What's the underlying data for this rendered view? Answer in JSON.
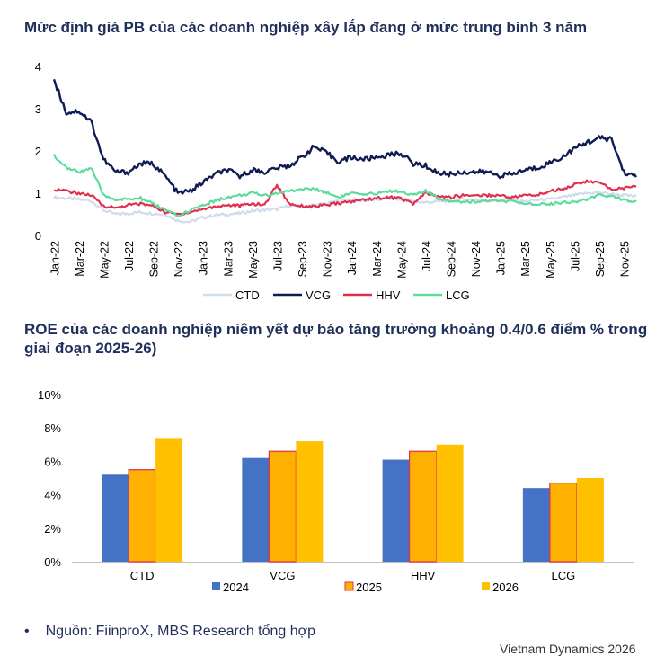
{
  "chart1_title": "Mức định giá PB của các doanh nghiệp xây lắp đang ở mức trung bình 3 năm",
  "chart2_title": "ROE của các doanh nghiệp niêm yết dự báo tăng trưởng khoảng 0.4/0.6 điểm % trong giai đoạn 2025-26)",
  "source": "Nguồn: FiinproX, MBS Research tổng hợp",
  "footer": "Vietnam Dynamics 2026",
  "chart_data": [
    {
      "type": "line",
      "title": "Mức định giá PB của các doanh nghiệp xây lắp đang ở mức trung bình 3 năm",
      "x_range": [
        "Jan-22",
        "Dec-25"
      ],
      "tick_labels": [
        "Jan-22",
        "Mar-22",
        "May-22",
        "Jul-22",
        "Sep-22",
        "Nov-22",
        "Jan-23",
        "Mar-23",
        "May-23",
        "Jul-23",
        "Sep-23",
        "Nov-23",
        "Jan-24",
        "Mar-24",
        "May-24",
        "Jul-24",
        "Sep-24",
        "Nov-24",
        "Jan-25",
        "Mar-25",
        "May-25",
        "Jul-25",
        "Sep-25",
        "Nov-25"
      ],
      "y_ticks": [
        "0",
        "1",
        "2",
        "3",
        "4"
      ],
      "ylim": [
        0,
        4
      ],
      "legend_position": "bottom",
      "months": [
        0,
        1,
        2,
        3,
        4,
        5,
        6,
        7,
        8,
        9,
        10,
        11,
        12,
        13,
        14,
        15,
        16,
        17,
        18,
        19,
        20,
        21,
        22,
        23,
        24,
        25,
        26,
        27,
        28,
        29,
        30,
        31,
        32,
        33,
        34,
        35,
        36,
        37,
        38,
        39,
        40,
        41,
        42,
        43,
        44,
        45,
        46,
        47
      ],
      "series": [
        {
          "name": "CTD",
          "color": "#d0dcec",
          "values": [
            0.9,
            0.88,
            0.85,
            0.82,
            0.6,
            0.5,
            0.52,
            0.55,
            0.52,
            0.5,
            0.35,
            0.32,
            0.42,
            0.48,
            0.5,
            0.52,
            0.58,
            0.6,
            0.62,
            0.7,
            0.68,
            0.72,
            0.75,
            0.82,
            0.85,
            0.82,
            0.84,
            0.88,
            0.84,
            0.8,
            0.78,
            0.8,
            0.82,
            0.85,
            0.85,
            0.82,
            0.84,
            0.85,
            0.8,
            0.84,
            0.85,
            0.9,
            0.95,
            1.0,
            1.02,
            0.98,
            0.95,
            0.92
          ]
        },
        {
          "name": "VCG",
          "color": "#0f1c54",
          "values": [
            3.7,
            2.9,
            2.95,
            2.7,
            1.8,
            1.5,
            1.5,
            1.7,
            1.7,
            1.4,
            1.0,
            1.05,
            1.25,
            1.45,
            1.55,
            1.4,
            1.55,
            1.5,
            1.6,
            1.65,
            1.85,
            2.1,
            1.95,
            1.75,
            1.85,
            1.8,
            1.85,
            1.9,
            1.95,
            1.7,
            1.65,
            1.48,
            1.45,
            1.5,
            1.5,
            1.5,
            1.42,
            1.45,
            1.55,
            1.6,
            1.72,
            1.85,
            2.05,
            2.2,
            2.3,
            2.28,
            1.5,
            1.38
          ]
        },
        {
          "name": "HHV",
          "color": "#e0304e",
          "values": [
            1.1,
            1.05,
            1.0,
            0.95,
            0.7,
            0.65,
            0.72,
            0.75,
            0.7,
            0.55,
            0.5,
            0.55,
            0.62,
            0.68,
            0.72,
            0.7,
            0.75,
            0.72,
            1.2,
            0.75,
            0.7,
            0.68,
            0.72,
            0.76,
            0.8,
            0.85,
            0.88,
            0.9,
            0.88,
            0.75,
            1.0,
            0.92,
            0.9,
            0.95,
            0.95,
            0.95,
            0.95,
            0.9,
            0.95,
            0.95,
            1.05,
            1.1,
            1.2,
            1.28,
            1.25,
            1.1,
            1.12,
            1.15
          ]
        },
        {
          "name": "LCG",
          "color": "#5ddb9b",
          "values": [
            1.9,
            1.6,
            1.5,
            1.6,
            0.95,
            0.85,
            0.85,
            0.88,
            0.75,
            0.6,
            0.45,
            0.6,
            0.7,
            0.82,
            0.9,
            0.95,
            1.0,
            0.95,
            1.0,
            1.05,
            1.1,
            1.1,
            1.02,
            0.9,
            1.0,
            0.95,
            1.0,
            1.05,
            1.05,
            0.95,
            1.05,
            0.88,
            0.82,
            0.8,
            0.8,
            0.82,
            0.8,
            0.82,
            0.72,
            0.75,
            0.75,
            0.78,
            0.8,
            0.85,
            0.95,
            0.92,
            0.85,
            0.8
          ]
        }
      ]
    },
    {
      "type": "bar",
      "title": "ROE của các doanh nghiệp niêm yết dự báo tăng trưởng khoảng 0.4/0.6 điểm % trong giai đoạn 2025-26)",
      "categories": [
        "CTD",
        "VCG",
        "HHV",
        "LCG"
      ],
      "ylim": [
        0,
        10
      ],
      "y_ticks": [
        "0%",
        "2%",
        "4%",
        "6%",
        "8%",
        "10%"
      ],
      "legend_position": "bottom",
      "series": [
        {
          "name": "2024",
          "color": "#4472c4",
          "values": [
            5.2,
            6.2,
            6.1,
            4.4
          ]
        },
        {
          "name": "2025",
          "color": "#ffb000",
          "values": [
            5.5,
            6.6,
            6.6,
            4.7
          ]
        },
        {
          "name": "2026",
          "color": "#ffc000",
          "values": [
            7.4,
            7.2,
            7.0,
            5.0
          ]
        }
      ]
    }
  ]
}
